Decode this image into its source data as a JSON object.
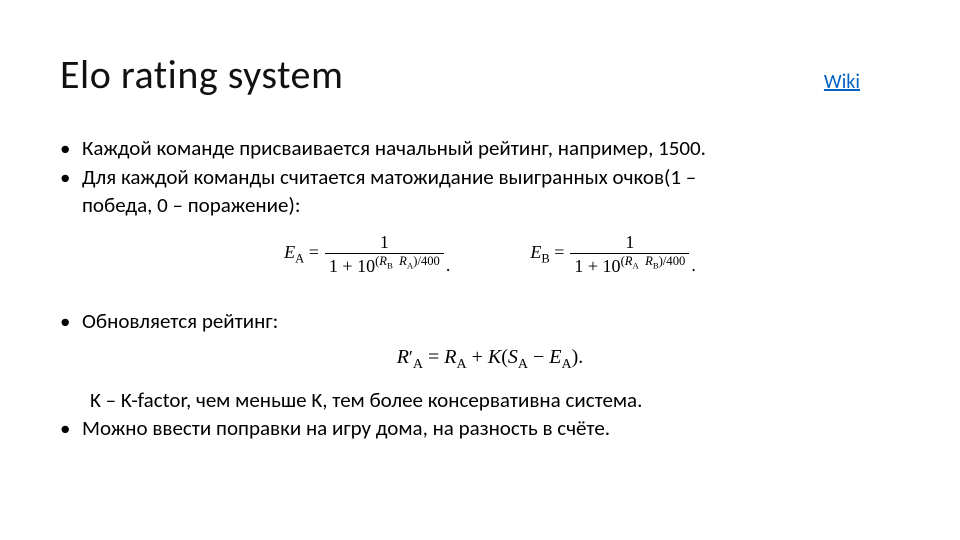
{
  "header": {
    "title": "Elo rating system",
    "link_label": "Wiki"
  },
  "bullets": {
    "b1": "Каждой команде присваивается начальный рейтинг, например, 1500.",
    "b2_line1": "Для каждой команды считается матожидание выигранных очков(1 –",
    "b2_line2": "победа, 0 – поражение):",
    "b3": "Обновляется рейтинг:",
    "b4_k": "K – K-factor, чем меньше K, тем более консервативна система.",
    "b5": "Можно ввести поправки на игру дома, на разность в счёте."
  },
  "formulas": {
    "ea": {
      "lhs": "E",
      "lhs_sub": "A",
      "num": "1",
      "den_prefix": "1 + 10",
      "exp_a": "R",
      "exp_a_sub": "B",
      "exp_b": "R",
      "exp_b_sub": "A",
      "exp_suffix": ")/400"
    },
    "eb": {
      "lhs": "E",
      "lhs_sub": "B",
      "num": "1",
      "den_prefix": "1 + 10",
      "exp_a": "R",
      "exp_a_sub": "A",
      "exp_b": "R",
      "exp_b_sub": "B",
      "exp_suffix": ")/400"
    },
    "update": {
      "lhs_pre": "R",
      "lhs_prime": "′",
      "lhs_sub": "A",
      "r": "R",
      "r_sub": "A",
      "k": "K",
      "s": "S",
      "s_sub": "A",
      "e": "E",
      "e_sub": "A"
    }
  }
}
